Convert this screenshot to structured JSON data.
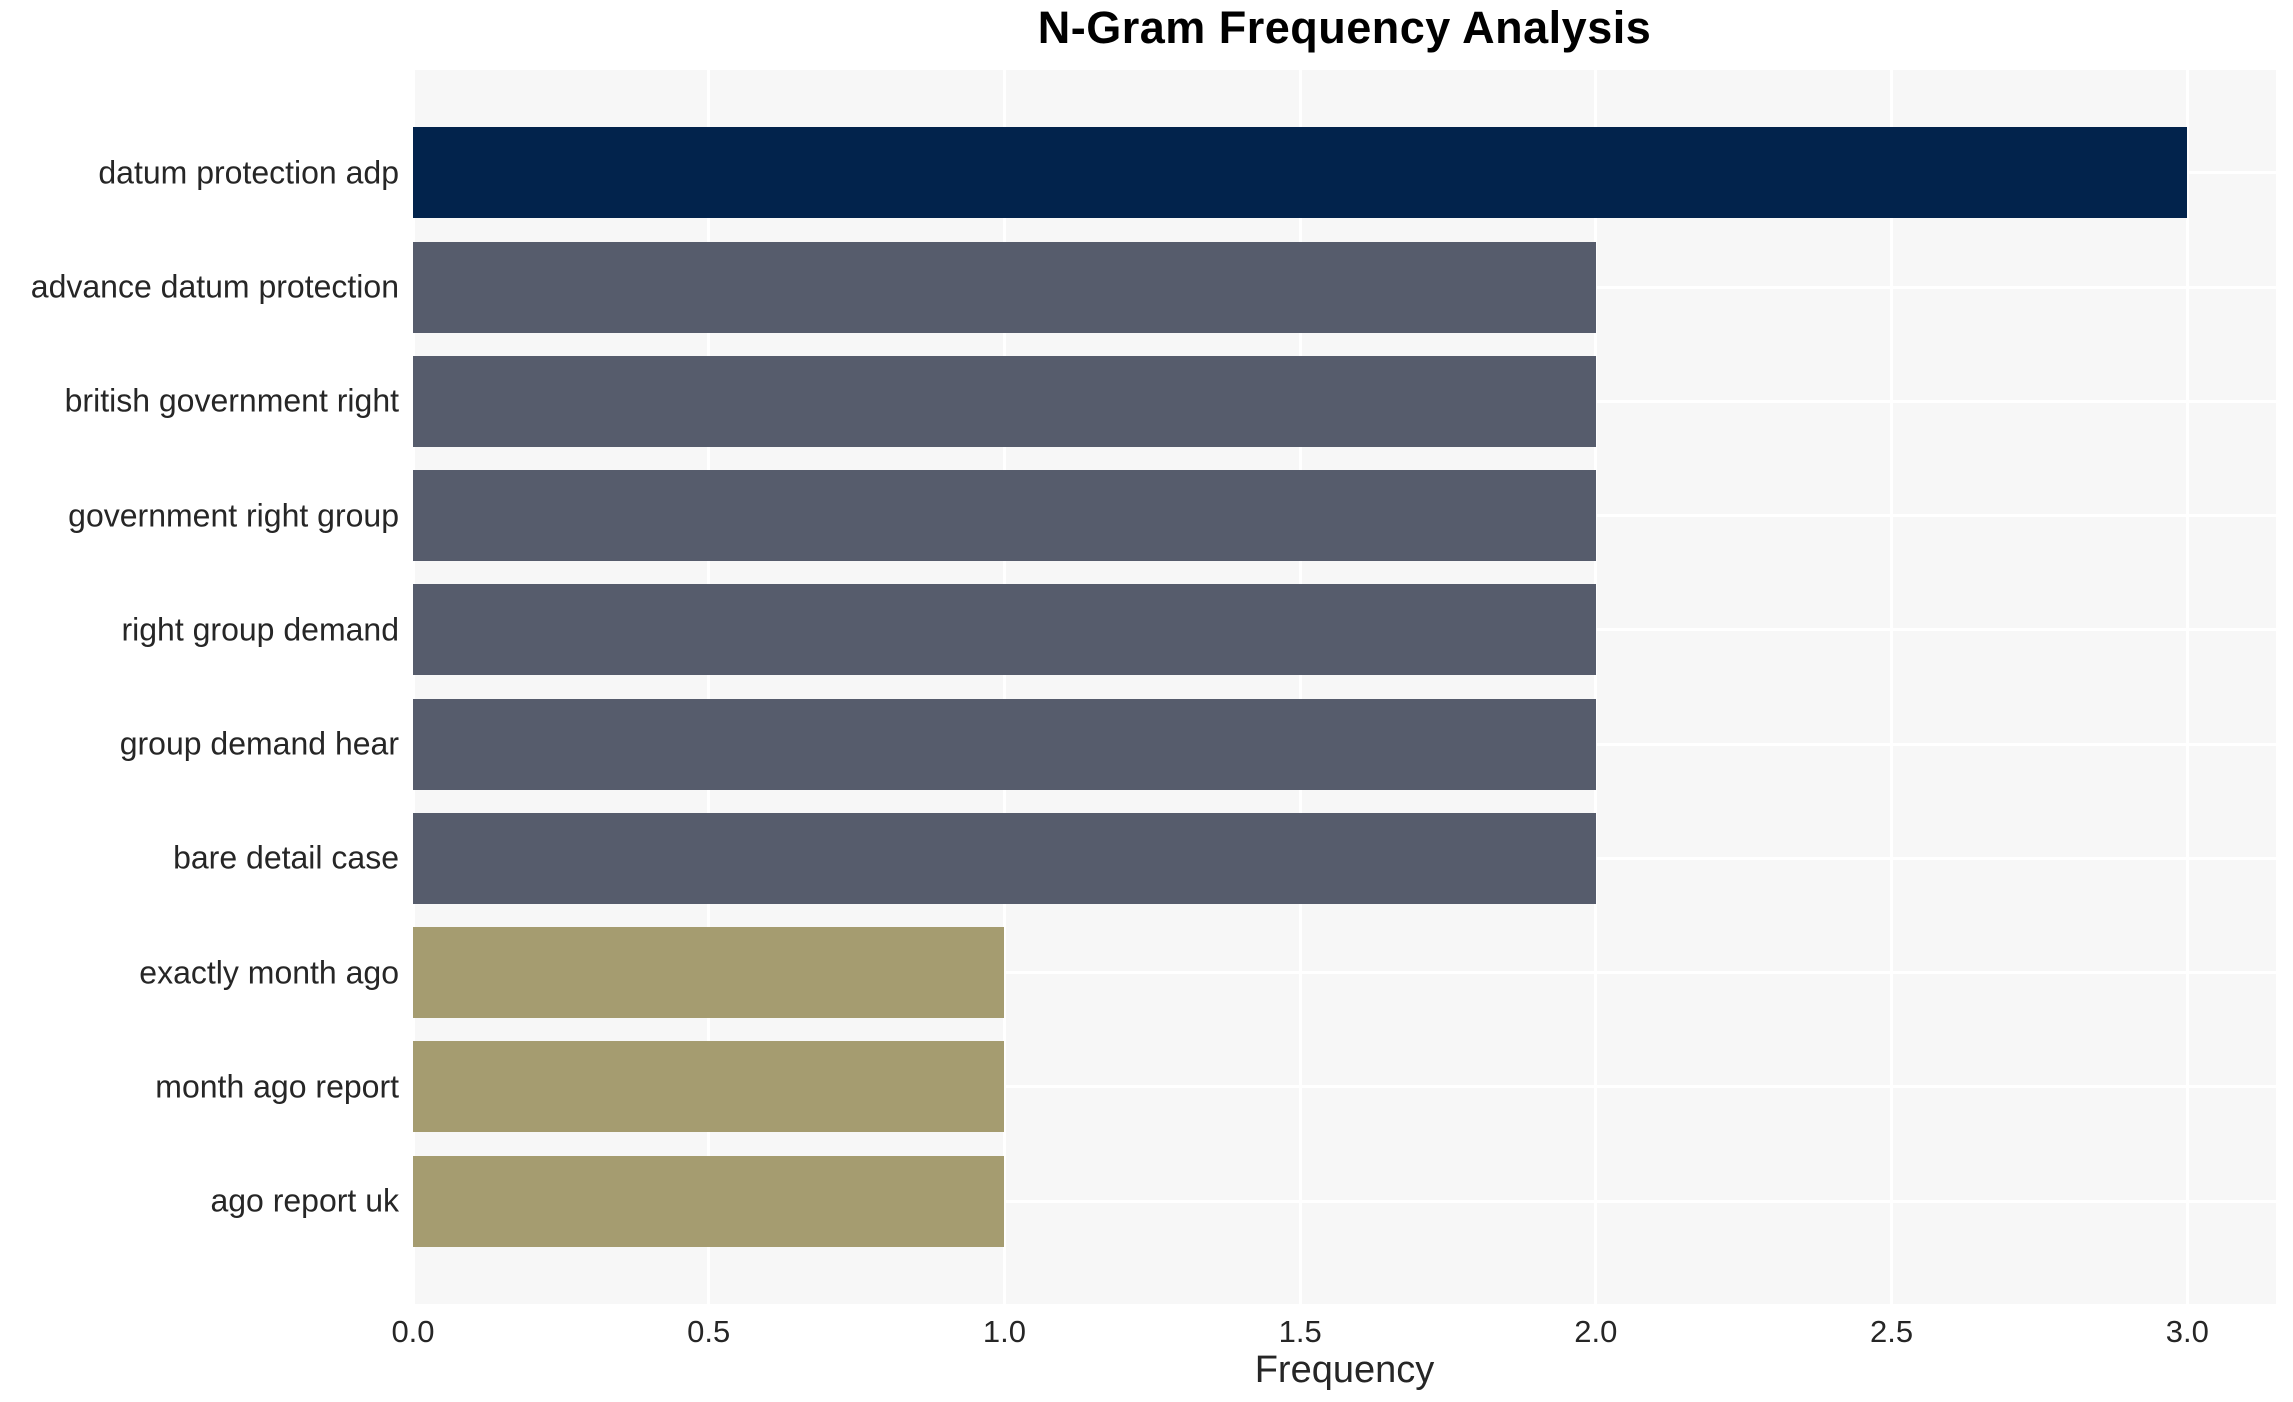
{
  "chart_data": {
    "type": "bar",
    "orientation": "horizontal",
    "title": "N-Gram Frequency Analysis",
    "xlabel": "Frequency",
    "ylabel": "",
    "categories": [
      "datum protection adp",
      "advance datum protection",
      "british government right",
      "government right group",
      "right group demand",
      "group demand hear",
      "bare detail case",
      "exactly month ago",
      "month ago report",
      "ago report uk"
    ],
    "values": [
      3,
      2,
      2,
      2,
      2,
      2,
      2,
      1,
      1,
      1
    ],
    "bar_colors": [
      "#02234C",
      "#565C6C",
      "#565C6C",
      "#565C6C",
      "#565C6C",
      "#565C6C",
      "#565C6C",
      "#A59C70",
      "#A59C70",
      "#A59C70"
    ],
    "xlim": [
      0,
      3.15
    ],
    "xtick_values": [
      0,
      0.5,
      1,
      1.5,
      2,
      2.5,
      3
    ],
    "xtick_labels": [
      "0.0",
      "0.5",
      "1.0",
      "1.5",
      "2.0",
      "2.5",
      "3.0"
    ],
    "grid": true,
    "legend": false,
    "colors": {
      "plot_background": "#F7F7F7",
      "gridline": "#FFFFFF",
      "figure_background": "#FFFFFF",
      "tick_text": "#262626",
      "title_text": "#000000"
    }
  }
}
